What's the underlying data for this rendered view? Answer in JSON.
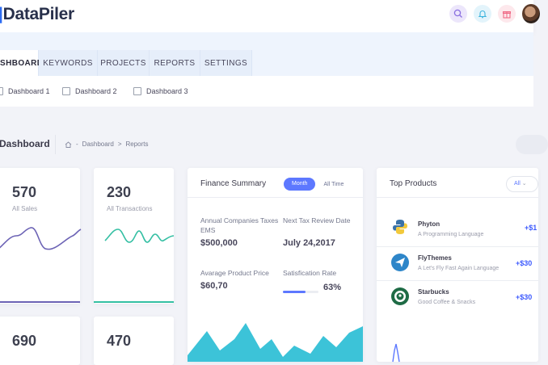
{
  "brand": {
    "name": "DataPiler",
    "accent": "#2d6cf2"
  },
  "header_icons": [
    "search-icon",
    "bell-icon",
    "gift-icon"
  ],
  "tabs": [
    {
      "label": "SHBOARD",
      "active": true
    },
    {
      "label": "KEYWORDS"
    },
    {
      "label": "PROJECTS"
    },
    {
      "label": "REPORTS"
    },
    {
      "label": "SETTINGS"
    }
  ],
  "subnav": [
    "Dashboard 1",
    "Dashboard 2",
    "Dashboard 3"
  ],
  "subheader": {
    "title": "Dashboard",
    "breadcrumb": [
      "Dashboard",
      "Reports"
    ],
    "separators": [
      "-",
      ">"
    ]
  },
  "stats": [
    {
      "value": "570",
      "label": "All Sales",
      "color": "#6c63b5"
    },
    {
      "value": "230",
      "label": "All Transactions",
      "color": "#34bfa3"
    },
    {
      "value": "690",
      "label": ""
    },
    {
      "value": "470",
      "label": ""
    }
  ],
  "finance": {
    "title": "Finance Summary",
    "toggle_on": "Month",
    "toggle_off": "All Time",
    "items": [
      {
        "label": "Annual Companies Taxes EMS",
        "value": "$500,000"
      },
      {
        "label": "Next Tax Review Date",
        "value": "July 24,2017"
      },
      {
        "label": "Avarage Product Price",
        "value": "$60,70"
      },
      {
        "label": "Satisfication Rate",
        "value": "63%"
      }
    ],
    "satisfaction_fraction": 0.63,
    "area_color": "#3cc3d8"
  },
  "products": {
    "title": "Top Products",
    "filter": "All",
    "items": [
      {
        "name": "Phyton",
        "desc": "A Programming Language",
        "price": "+$1",
        "logo": "python-logo"
      },
      {
        "name": "FlyThemes",
        "desc": "A Let's Fly Fast Again Language",
        "price": "+$30",
        "logo": "flythemes-logo"
      },
      {
        "name": "Starbucks",
        "desc": "Good Coffee & Snacks",
        "price": "+$30",
        "logo": "starbucks-logo"
      }
    ]
  }
}
